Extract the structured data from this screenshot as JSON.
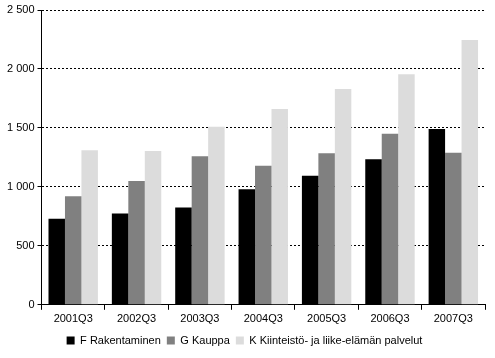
{
  "chart_data": {
    "type": "bar",
    "categories": [
      "2001Q3",
      "2002Q3",
      "2003Q3",
      "2004Q3",
      "2005Q3",
      "2006Q3",
      "2007Q3"
    ],
    "series": [
      {
        "name": "F Rakentaminen",
        "color": "#000000",
        "values": [
          730,
          775,
          825,
          980,
          1095,
          1235,
          1490
        ]
      },
      {
        "name": "G Kauppa",
        "color": "#808080",
        "values": [
          920,
          1050,
          1260,
          1180,
          1285,
          1450,
          1290
        ]
      },
      {
        "name": "K Kiinteistö- ja liike-elämän palvelut",
        "color": "#dcdcdc",
        "values": [
          1310,
          1305,
          1510,
          1660,
          1830,
          1955,
          2245
        ]
      }
    ],
    "ylim": [
      0,
      2500
    ],
    "yticks": [
      {
        "value": 0,
        "label": "0"
      },
      {
        "value": 500,
        "label": "500"
      },
      {
        "value": 1000,
        "label": "1 000"
      },
      {
        "value": 1500,
        "label": "1 500"
      },
      {
        "value": 2000,
        "label": "2 000"
      },
      {
        "value": 2500,
        "label": "2 500"
      }
    ],
    "grid": true,
    "legend": "bottom"
  }
}
